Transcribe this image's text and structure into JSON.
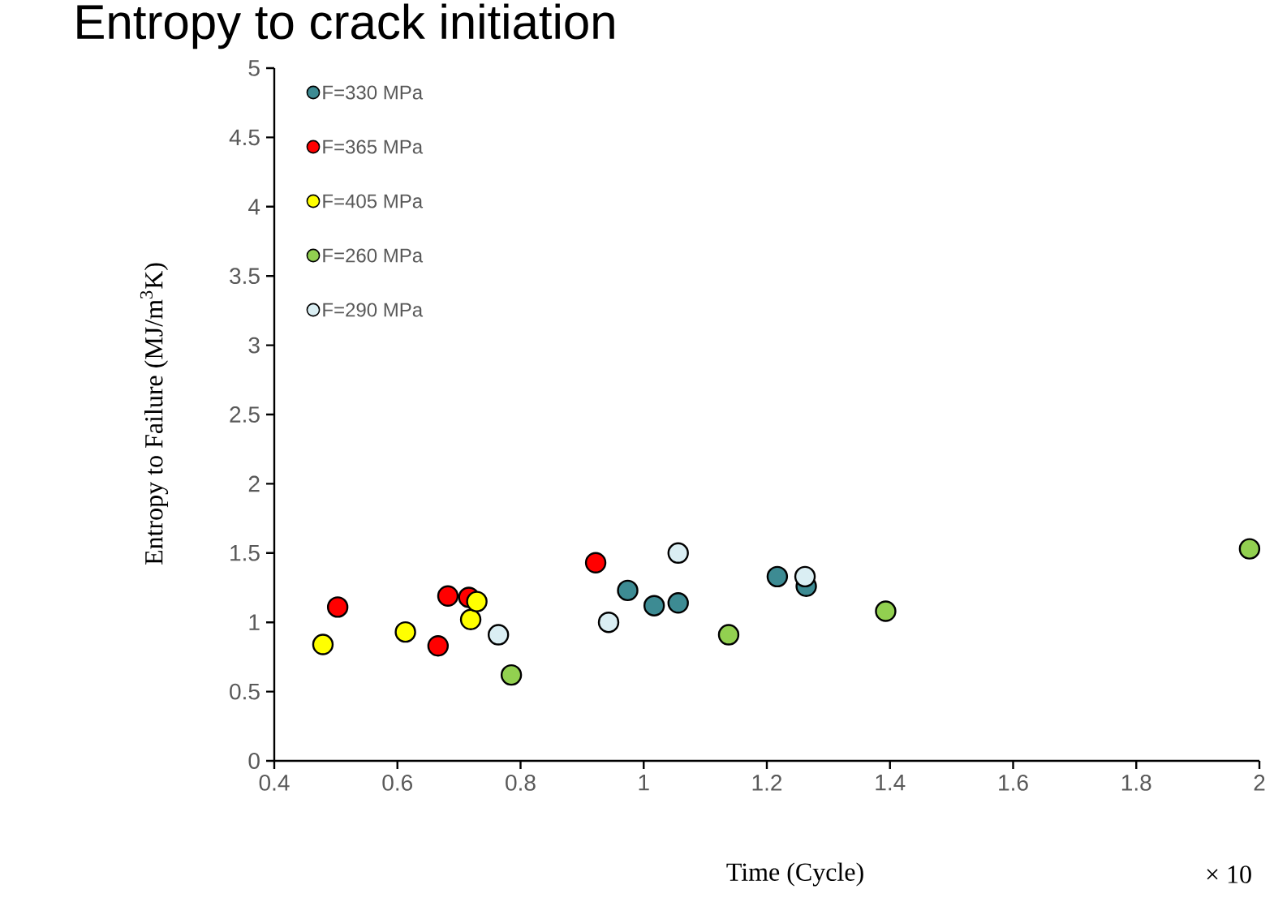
{
  "chart_data": {
    "type": "scatter",
    "title": "Entropy to crack initiation",
    "xlabel": "Time (Cycle)",
    "ylabel": "Entropy to Failure (MJ/m$^{3}$K)",
    "annotations": [
      "× 10"
    ],
    "xlim": [
      0.4,
      2
    ],
    "xticks": [
      0.4,
      0.6,
      0.8,
      1,
      1.2,
      1.4,
      1.6,
      1.8,
      2
    ],
    "ylim": [
      0,
      5
    ],
    "yticks": [
      0,
      0.5,
      1,
      1.5,
      2,
      2.5,
      3,
      3.5,
      4,
      4.5,
      5
    ],
    "marker": "circle",
    "legend": "top left",
    "grid": false,
    "series": [
      {
        "name": "F=330 MPa",
        "color": "#3d8b93",
        "x": [
          0.974,
          1.017,
          1.056,
          1.217,
          1.264
        ],
        "values": [
          1.23,
          1.12,
          1.14,
          1.33,
          1.26
        ]
      },
      {
        "name": "F=365 MPa",
        "color": "#ff0000",
        "x": [
          0.503,
          0.682,
          0.716,
          0.666,
          0.922
        ],
        "values": [
          1.11,
          1.19,
          1.18,
          0.83,
          1.43
        ]
      },
      {
        "name": "F=405 MPa",
        "color": "#ffff00",
        "x": [
          0.479,
          0.613,
          0.719,
          0.729
        ],
        "values": [
          0.84,
          0.93,
          1.02,
          1.15
        ]
      },
      {
        "name": "F=260 MPa",
        "color": "#92d050",
        "x": [
          0.785,
          1.138,
          1.393,
          1.984
        ],
        "values": [
          0.62,
          0.91,
          1.08,
          1.53
        ]
      },
      {
        "name": "F=290 MPa",
        "color": "#daeef3",
        "x": [
          0.764,
          0.943,
          1.056,
          1.262
        ],
        "values": [
          0.91,
          1.0,
          1.5,
          1.33
        ]
      }
    ]
  }
}
